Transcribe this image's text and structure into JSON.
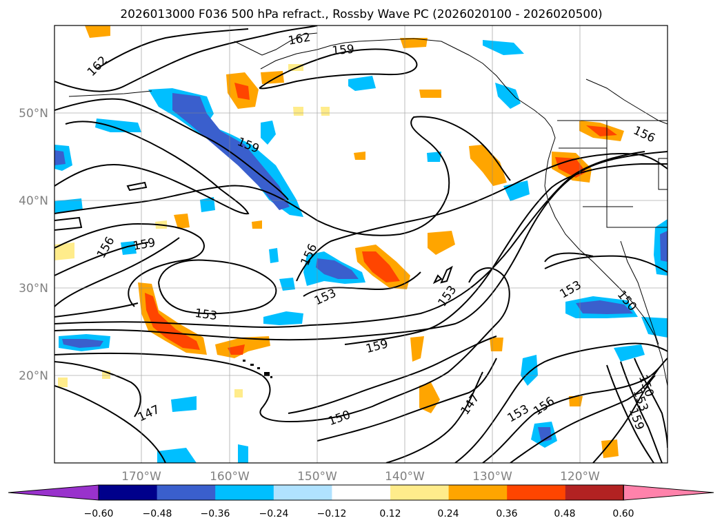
{
  "title": "2026013000 F036 500 hPa refract., Rossby Wave PC (2026020100 - 2026020500)",
  "map": {
    "projection": "plate-carree",
    "lon_range": [
      -180,
      -110
    ],
    "lat_range": [
      10,
      60
    ],
    "lat_ticks": [
      "50°N",
      "40°N",
      "30°N",
      "20°N"
    ],
    "lon_ticks": [
      "170°W",
      "160°W",
      "150°W",
      "140°W",
      "130°W",
      "120°W"
    ],
    "gridlines": true,
    "contour_labels": [
      "162",
      "162",
      "159",
      "159",
      "159",
      "156",
      "156",
      "156",
      "153",
      "153",
      "153",
      "153",
      "159",
      "147",
      "150",
      "147",
      "153",
      "156",
      "150",
      "153",
      "159",
      "150"
    ]
  },
  "colorbar": {
    "ticks": [
      "−0.60",
      "−0.48",
      "−0.36",
      "−0.24",
      "−0.12",
      "0.12",
      "0.24",
      "0.36",
      "0.48",
      "0.60"
    ],
    "colors": [
      "#9932cc",
      "#00008b",
      "#3a5fcd",
      "#00bfff",
      "#b0e2ff",
      "#ffffff",
      "#ffec8b",
      "#ffa500",
      "#ff4500",
      "#b22222",
      "#ff82ab"
    ]
  }
}
